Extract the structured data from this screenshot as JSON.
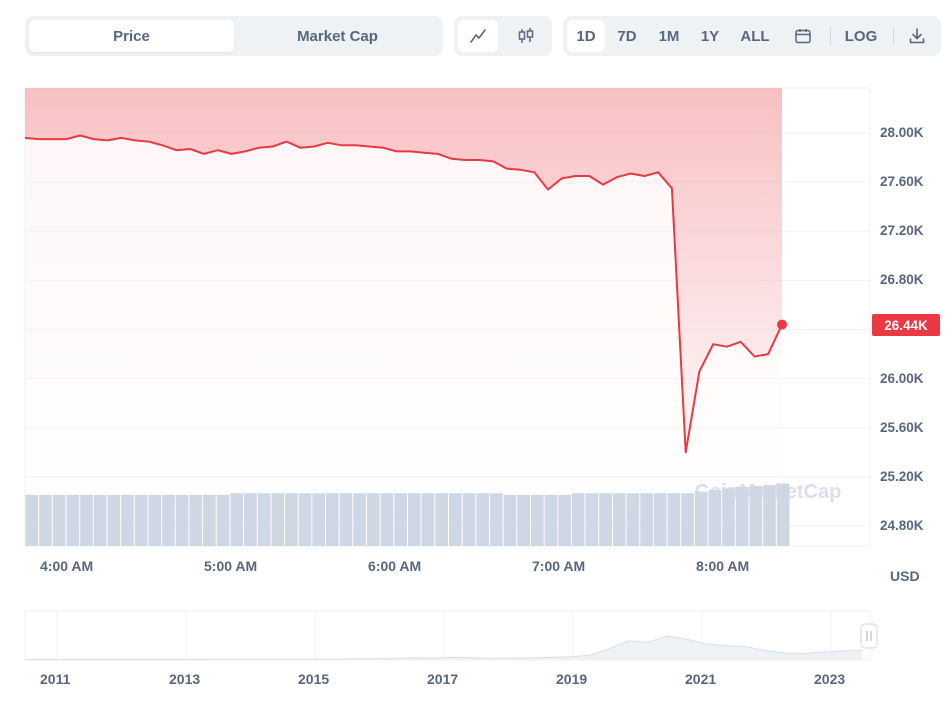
{
  "toolbar": {
    "metric_tabs": [
      {
        "label": "Price",
        "active": true
      },
      {
        "label": "Market Cap",
        "active": false
      }
    ],
    "chart_styles": [
      {
        "icon": "line-chart-icon",
        "active": true
      },
      {
        "icon": "candlestick-icon",
        "active": false
      }
    ],
    "ranges": [
      {
        "label": "1D",
        "active": true
      },
      {
        "label": "7D",
        "active": false
      },
      {
        "label": "1M",
        "active": false
      },
      {
        "label": "1Y",
        "active": false
      },
      {
        "label": "ALL",
        "active": false
      }
    ],
    "calendar_icon": "calendar-icon",
    "log_label": "LOG",
    "download_icon": "download-icon"
  },
  "watermark": "CoinMarketCap",
  "currency_label": "USD",
  "colors": {
    "line": "#ea3943",
    "area_top": "#ea3943",
    "volume": "#cfd6e4",
    "grid": "#eff2f5",
    "text": "#58667e"
  },
  "chart_data": {
    "type": "line",
    "title": "",
    "xlabel": "",
    "ylabel": "",
    "x_ticks": [
      "4:00 AM",
      "5:00 AM",
      "6:00 AM",
      "7:00 AM",
      "8:00 AM"
    ],
    "y_ticks": [
      "24.80K",
      "25.20K",
      "25.60K",
      "26.00K",
      "26.40K",
      "26.80K",
      "27.20K",
      "27.60K",
      "28.00K"
    ],
    "ylim": [
      24.8,
      28.4
    ],
    "y_unit": "K USD",
    "current_value": 26.44,
    "current_label": "26.44K",
    "grid": true,
    "series": [
      {
        "values": [
          27.96,
          27.95,
          27.95,
          27.95,
          27.98,
          27.95,
          27.94,
          27.96,
          27.94,
          27.93,
          27.9,
          27.86,
          27.87,
          27.83,
          27.86,
          27.83,
          27.85,
          27.88,
          27.89,
          27.93,
          27.88,
          27.89,
          27.92,
          27.9,
          27.9,
          27.89,
          27.88,
          27.85,
          27.85,
          27.84,
          27.83,
          27.79,
          27.78,
          27.78,
          27.77,
          27.71,
          27.7,
          27.68,
          27.54,
          27.63,
          27.65,
          27.65,
          27.58,
          27.64,
          27.67,
          27.65,
          27.68,
          27.55,
          25.4,
          26.06,
          26.28,
          26.26,
          26.3,
          26.18,
          26.2,
          26.44
        ]
      }
    ],
    "volume_relative": [
      0.64,
      0.64,
      0.64,
      0.64,
      0.64,
      0.64,
      0.64,
      0.64,
      0.64,
      0.64,
      0.64,
      0.64,
      0.64,
      0.64,
      0.64,
      0.66,
      0.66,
      0.66,
      0.66,
      0.66,
      0.66,
      0.66,
      0.66,
      0.66,
      0.66,
      0.66,
      0.66,
      0.66,
      0.66,
      0.66,
      0.66,
      0.66,
      0.66,
      0.66,
      0.66,
      0.64,
      0.64,
      0.64,
      0.64,
      0.64,
      0.66,
      0.66,
      0.66,
      0.66,
      0.66,
      0.66,
      0.66,
      0.66,
      0.66,
      0.68,
      0.7,
      0.72,
      0.74,
      0.75,
      0.76,
      0.78
    ]
  },
  "navigator": {
    "x_ticks": [
      "2011",
      "2013",
      "2015",
      "2017",
      "2019",
      "2021",
      "2023"
    ],
    "history_relative": [
      0.02,
      0.02,
      0.02,
      0.02,
      0.02,
      0.02,
      0.02,
      0.02,
      0.02,
      0.02,
      0.03,
      0.03,
      0.03,
      0.03,
      0.03,
      0.03,
      0.03,
      0.04,
      0.04,
      0.05,
      0.07,
      0.06,
      0.08,
      0.07,
      0.05,
      0.06,
      0.07,
      0.08,
      0.1,
      0.15,
      0.35,
      0.6,
      0.55,
      0.75,
      0.65,
      0.5,
      0.45,
      0.42,
      0.3,
      0.22,
      0.2,
      0.25,
      0.28,
      0.3
    ]
  }
}
